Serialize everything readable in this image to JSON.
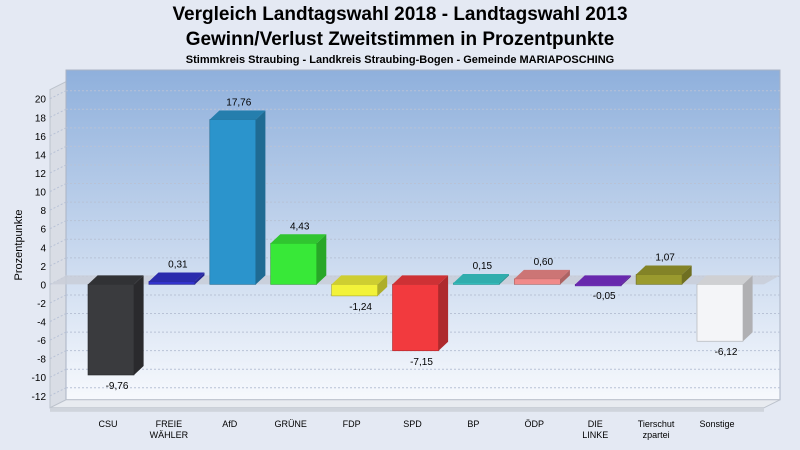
{
  "chart": {
    "title": "Vergleich Landtagswahl 2018 - Landtagswahl 2013",
    "subtitle": "Gewinn/Verlust Zweitstimmen in Prozentpunkte",
    "location": "Stimmkreis Straubing - Landkreis Straubing-Bogen - Gemeinde MARIAPOSCHING"
  },
  "chart_data": {
    "type": "bar",
    "ylabel": "Prozentpunkte",
    "ylim": [
      -12,
      20
    ],
    "yticks": [
      "20",
      "18",
      "16",
      "14",
      "12",
      "10",
      "8",
      "6",
      "4",
      "2",
      "0",
      "-2",
      "-4",
      "-6",
      "-8",
      "-10",
      "-12"
    ],
    "grid": true,
    "categories": [
      {
        "lines": [
          "CSU"
        ],
        "value": -9.76,
        "label": "-9,76",
        "color": "#3a3b3e"
      },
      {
        "lines": [
          "FREIE",
          "WÄHLER"
        ],
        "value": 0.31,
        "label": "0,31",
        "color": "#3333cc"
      },
      {
        "lines": [
          "AfD"
        ],
        "value": 17.76,
        "label": "17,76",
        "color": "#2b94cc"
      },
      {
        "lines": [
          "GRÜNE"
        ],
        "value": 4.43,
        "label": "4,43",
        "color": "#38e838"
      },
      {
        "lines": [
          "FDP"
        ],
        "value": -1.24,
        "label": "-1,24",
        "color": "#f2f23a"
      },
      {
        "lines": [
          "SPD"
        ],
        "value": -7.15,
        "label": "-7,15",
        "color": "#f23a3e"
      },
      {
        "lines": [
          "BP"
        ],
        "value": 0.15,
        "label": "0,15",
        "color": "#38cccc"
      },
      {
        "lines": [
          "ÖDP"
        ],
        "value": 0.6,
        "label": "0,60",
        "color": "#f08a8a"
      },
      {
        "lines": [
          "DIE",
          "LINKE"
        ],
        "value": -0.05,
        "label": "-0,05",
        "color": "#7a2fcc"
      },
      {
        "lines": [
          "Tierschut",
          "zpartei"
        ],
        "value": 1.07,
        "label": "1,07",
        "color": "#9a9a2e"
      },
      {
        "lines": [
          "Sonstige"
        ],
        "value": -6.12,
        "label": "-6,12",
        "color": "#f4f5f8"
      }
    ]
  }
}
